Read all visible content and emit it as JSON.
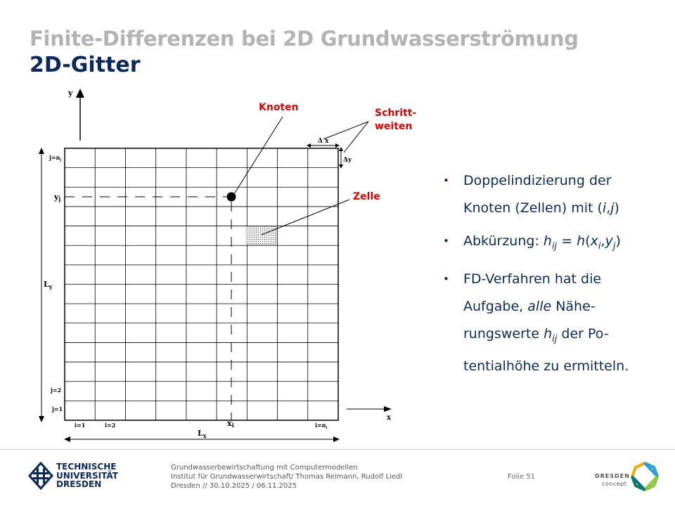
{
  "header": {
    "title": "Finite-Differenzen bei 2D Grundwasserströmung",
    "subtitle": "2D-Gitter"
  },
  "diagram": {
    "y_axis_label": "y",
    "x_axis_label": "x",
    "row_top_label": "j=n",
    "row_top_sub": "j",
    "row_yj_label": "y",
    "row_yj_sub": "j",
    "height_label": "L",
    "height_sub": "y",
    "row2_label": "j=2",
    "row1_label": "j=1",
    "col1_label": "i=1",
    "col2_label": "i=2",
    "col_xi_label": "x",
    "col_xi_sub": "i",
    "col_last_label": "i=n",
    "col_last_sub": "i",
    "width_label": "L",
    "width_sub": "x",
    "dx_label": "Δ x",
    "dy_label": "Δy",
    "annot_node": "Knoten",
    "annot_step_1": "Schritt-",
    "annot_step_2": "weiten",
    "annot_cell": "Zelle",
    "accent_color": "#e00000"
  },
  "bullets": {
    "b1_text": "Doppelindizierung der Knoten (Zellen) mit (",
    "b1_i": "i",
    "b1_comma": ",",
    "b1_j": "j",
    "b1_close": ")",
    "b2_text": "Abkürzung: ",
    "b2_h": "h",
    "b2_ij": "ij",
    "b2_eq": " = ",
    "b2_h2": "h",
    "b2_open": "(",
    "b2_x": "x",
    "b2_xi": "i",
    "b2_comma": ",",
    "b2_y": "y",
    "b2_yj": "j",
    "b2_close": ")",
    "b3_a": "FD-Verfahren hat die Aufgabe, ",
    "b3_alle": "alle",
    "b3_b": " Nähe-rungswerte ",
    "b3_h": "h",
    "b3_ij": "ij",
    "b3_c": " der Po-tentialhöhe zu ermitteln."
  },
  "footer": {
    "tud_line1": "TECHNISCHE",
    "tud_line2": "UNIVERSITÄT",
    "tud_line3": "DRESDEN",
    "course_line1": "Grundwasserbewirtschaftung mit Computermodellen",
    "course_line2": "Institut für Grundwasserwirtschaft/ Thomas Reimann, Rudolf Liedl",
    "course_line3": "Dresden // 30.10.2025 / 06.11.2025",
    "folie_label": "Folie 51",
    "dc_line1": "DRESDEN",
    "dc_line2": "concept"
  }
}
